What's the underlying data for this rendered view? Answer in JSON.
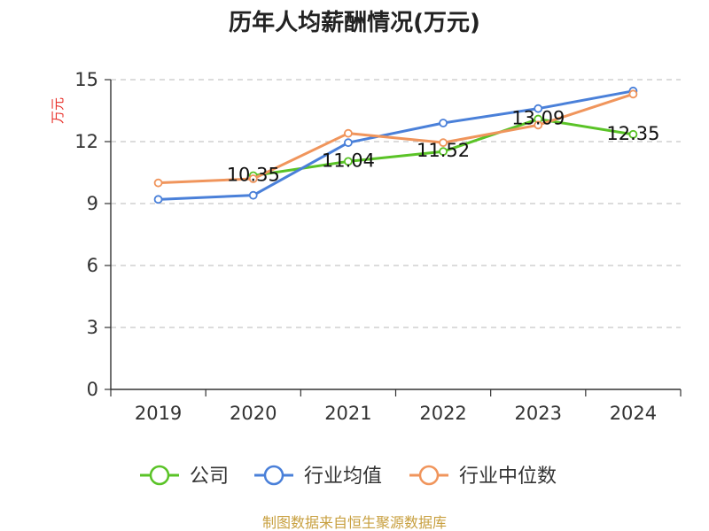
{
  "chart_data": {
    "type": "line",
    "title": "历年人均薪酬情况(万元)",
    "ylabel": "万元",
    "xlabel": "",
    "categories": [
      "2019",
      "2020",
      "2021",
      "2022",
      "2023",
      "2024"
    ],
    "ylim": [
      0,
      15
    ],
    "yticks": [
      0,
      3,
      6,
      9,
      12,
      15
    ],
    "grid": true,
    "legend_position": "bottom",
    "series": [
      {
        "name": "公司",
        "color": "#5ac327",
        "values": [
          null,
          10.35,
          11.04,
          11.52,
          13.09,
          12.35
        ],
        "labels": [
          "",
          "10.35",
          "11.04",
          "11.52",
          "13.09",
          "12.35"
        ]
      },
      {
        "name": "行业均值",
        "color": "#4a80d9",
        "values": [
          9.2,
          9.4,
          11.95,
          12.9,
          13.6,
          14.45
        ]
      },
      {
        "name": "行业中位数",
        "color": "#f0955c",
        "values": [
          10.0,
          10.2,
          12.4,
          11.95,
          12.8,
          14.3
        ]
      }
    ],
    "source": "制图数据来自恒生聚源数据库"
  }
}
